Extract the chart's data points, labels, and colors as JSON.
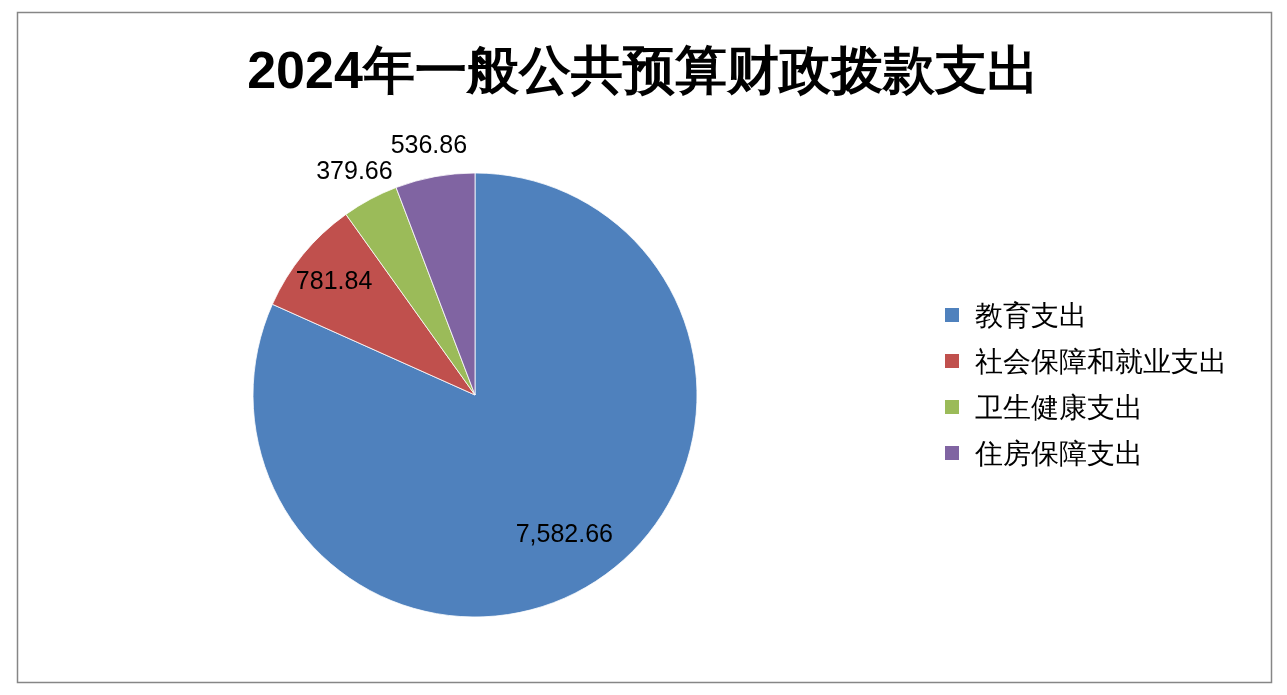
{
  "chart_data": {
    "type": "pie",
    "title": "2024年一般公共预算财政拨款支出",
    "categories": [
      "教育支出",
      "社会保障和就业支出",
      "卫生健康支出",
      "住房保障支出"
    ],
    "values": [
      7582.66,
      781.84,
      379.66,
      536.86
    ],
    "colors": [
      "#4f81bd",
      "#c0504d",
      "#9bbb59",
      "#8064a2"
    ],
    "value_labels": [
      "7,582.66",
      "781.84",
      "379.66",
      "536.86"
    ],
    "legend": "right"
  }
}
